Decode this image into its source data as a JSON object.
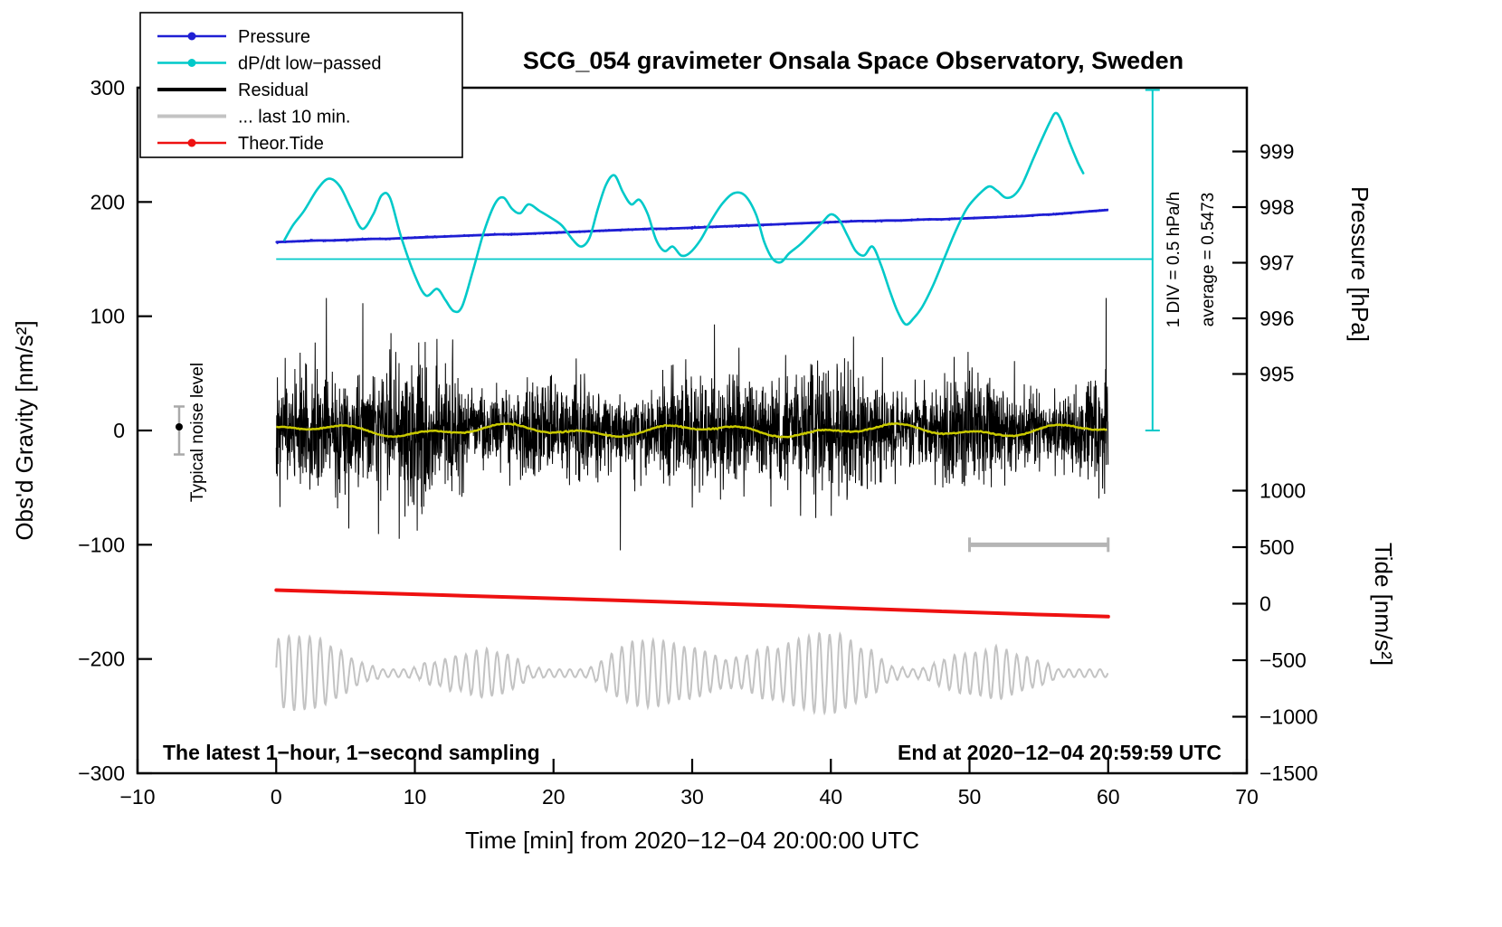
{
  "title": "SCG_054 gravimeter Onsala Space Observatory, Sweden",
  "footer": {
    "left": "The latest 1−hour, 1−second sampling",
    "right": "End at 2020−12−04 20:59:59 UTC"
  },
  "annotations": {
    "div_label": "1 DIV = 0.5 hPa/h",
    "average_label": "average = 0.5473",
    "noise_label": "Typical noise level"
  },
  "colors": {
    "pressure": "#1f1fd4",
    "dpdt": "#00c9c9",
    "residual": "#000000",
    "residual_lowpass": "#c9c900",
    "last10": "#c3c3c3",
    "tide": "#ee1111",
    "frame": "#000000",
    "marker_bar": "#a9a9a9",
    "scale_bar": "#b5b5b5"
  },
  "axes": {
    "x": {
      "label": "Time [min] from 2020−12−04 20:00:00 UTC",
      "min": -10,
      "max": 70,
      "ticks": [
        -10,
        0,
        10,
        20,
        30,
        40,
        50,
        60,
        70
      ],
      "tick_labels": [
        "−10",
        "0",
        "10",
        "20",
        "30",
        "40",
        "50",
        "60",
        "70"
      ]
    },
    "gravity": {
      "label": "Obs'd Gravity [nm/s²]",
      "min": -300,
      "max": 300,
      "ticks": [
        -300,
        -200,
        -100,
        0,
        100,
        200,
        300
      ],
      "tick_labels": [
        "−300",
        "−200",
        "−100",
        "0",
        "100",
        "200",
        "300"
      ]
    },
    "pressure": {
      "label": "Pressure [hPa]",
      "ticks": [
        995,
        996,
        997,
        998,
        999
      ],
      "tick_labels": [
        "995",
        "996",
        "997",
        "998",
        "999"
      ]
    },
    "tide": {
      "label": "Tide [nm/s²]",
      "ticks": [
        1000,
        500,
        0,
        -500,
        -1000,
        -1500
      ],
      "tick_labels": [
        "1000",
        "500",
        "0",
        "−500",
        "−1000",
        "−1500"
      ]
    }
  },
  "legend": {
    "items": [
      {
        "label": "Pressure",
        "color_key": "pressure",
        "marker": "dot",
        "thick": false
      },
      {
        "label": "dP/dt low−passed",
        "color_key": "dpdt",
        "marker": "dot",
        "thick": false
      },
      {
        "label": "Residual",
        "color_key": "residual",
        "marker": "none",
        "thick": true
      },
      {
        "label": "... last 10 min.",
        "color_key": "last10",
        "marker": "none",
        "thick": true
      },
      {
        "label": "Theor.Tide",
        "color_key": "tide",
        "marker": "dot",
        "thick": false
      }
    ]
  },
  "chart_data": {
    "type": "line",
    "title": "SCG_054 gravimeter Onsala Space Observatory, Sweden",
    "x_label": "Time [min] from 2020-12-04 20:00:00 UTC",
    "x_range": [
      -10,
      70
    ],
    "y_left_label": "Obs'd Gravity [nm/s²]",
    "y_left_range": [
      -300,
      300
    ],
    "y_right_pressure_label": "Pressure [hPa]",
    "y_right_pressure_ticks": [
      995,
      999
    ],
    "y_right_tide_label": "Tide [nm/s²]",
    "y_right_tide_range": [
      -1500,
      1000
    ],
    "reference_lines": {
      "dpdt_average": 0.5473,
      "average_line_gravity": 150,
      "div_value_hpa_per_h": 0.5
    },
    "extras": {
      "average_line": {
        "axis": "dpdt",
        "value": 0.5473,
        "x1": 0,
        "x2": 63.2
      },
      "div_ruler": {
        "x": 63.2,
        "gravity_from": 0,
        "gravity_to": 298
      },
      "scale_bar": {
        "x1": 50,
        "x2": 60,
        "gravity": -100
      },
      "noise_marker": {
        "x": -7,
        "gravity": 0,
        "error": 21
      }
    },
    "series": [
      {
        "name": "Pressure",
        "axis": "pressure",
        "render": "sampled_line",
        "color_key": "pressure",
        "width": 2.8,
        "x_start": 0,
        "x_step": 1,
        "y": [
          997.37,
          997.38,
          997.39,
          997.4,
          997.4,
          997.41,
          997.42,
          997.43,
          997.43,
          997.44,
          997.45,
          997.46,
          997.47,
          997.48,
          997.49,
          997.5,
          997.51,
          997.51,
          997.52,
          997.53,
          997.54,
          997.55,
          997.56,
          997.57,
          997.58,
          997.59,
          997.6,
          997.61,
          997.61,
          997.62,
          997.63,
          997.64,
          997.65,
          997.66,
          997.67,
          997.68,
          997.69,
          997.7,
          997.71,
          997.72,
          997.73,
          997.74,
          997.75,
          997.75,
          997.76,
          997.76,
          997.77,
          997.78,
          997.78,
          997.79,
          997.8,
          997.81,
          997.82,
          997.83,
          997.84,
          997.86,
          997.87,
          997.89,
          997.91,
          997.93,
          997.95
        ],
        "dot_seed": 3,
        "dot_count": 700,
        "dot_sigma_hpa": 0.007
      },
      {
        "name": "dP/dt low−passed",
        "axis": "dpdt",
        "render": "smooth_points",
        "color_key": "dpdt",
        "width": 2.6,
        "points": [
          [
            0.6,
            0.72
          ],
          [
            1.2,
            0.85
          ],
          [
            2.0,
            0.98
          ],
          [
            3.0,
            1.18
          ],
          [
            3.8,
            1.27
          ],
          [
            4.6,
            1.2
          ],
          [
            5.4,
            1.0
          ],
          [
            6.2,
            0.82
          ],
          [
            7.0,
            0.95
          ],
          [
            7.6,
            1.12
          ],
          [
            8.2,
            1.1
          ],
          [
            9.0,
            0.75
          ],
          [
            10.0,
            0.4
          ],
          [
            10.8,
            0.22
          ],
          [
            11.6,
            0.28
          ],
          [
            12.2,
            0.18
          ],
          [
            12.8,
            0.08
          ],
          [
            13.4,
            0.12
          ],
          [
            14.2,
            0.45
          ],
          [
            15.0,
            0.8
          ],
          [
            15.8,
            1.05
          ],
          [
            16.4,
            1.1
          ],
          [
            17.0,
            1.0
          ],
          [
            17.6,
            0.96
          ],
          [
            18.2,
            1.04
          ],
          [
            19.0,
            0.98
          ],
          [
            19.8,
            0.92
          ],
          [
            20.6,
            0.85
          ],
          [
            21.4,
            0.72
          ],
          [
            22.0,
            0.66
          ],
          [
            22.6,
            0.74
          ],
          [
            23.2,
            1.0
          ],
          [
            23.8,
            1.22
          ],
          [
            24.4,
            1.3
          ],
          [
            25.0,
            1.15
          ],
          [
            25.6,
            1.04
          ],
          [
            26.2,
            1.08
          ],
          [
            26.8,
            0.95
          ],
          [
            27.4,
            0.72
          ],
          [
            28.0,
            0.62
          ],
          [
            28.6,
            0.66
          ],
          [
            29.2,
            0.58
          ],
          [
            29.8,
            0.6
          ],
          [
            30.6,
            0.72
          ],
          [
            31.4,
            0.9
          ],
          [
            32.2,
            1.05
          ],
          [
            33.0,
            1.14
          ],
          [
            33.8,
            1.12
          ],
          [
            34.6,
            0.95
          ],
          [
            35.2,
            0.7
          ],
          [
            35.8,
            0.55
          ],
          [
            36.4,
            0.52
          ],
          [
            37.0,
            0.6
          ],
          [
            37.8,
            0.68
          ],
          [
            38.6,
            0.78
          ],
          [
            39.4,
            0.88
          ],
          [
            40.0,
            0.95
          ],
          [
            40.6,
            0.9
          ],
          [
            41.2,
            0.76
          ],
          [
            41.8,
            0.62
          ],
          [
            42.4,
            0.58
          ],
          [
            43.0,
            0.66
          ],
          [
            43.6,
            0.5
          ],
          [
            44.2,
            0.28
          ],
          [
            44.8,
            0.08
          ],
          [
            45.4,
            -0.04
          ],
          [
            46.0,
            0.02
          ],
          [
            46.6,
            0.12
          ],
          [
            47.4,
            0.32
          ],
          [
            48.2,
            0.56
          ],
          [
            49.0,
            0.8
          ],
          [
            49.8,
            1.0
          ],
          [
            50.6,
            1.12
          ],
          [
            51.4,
            1.2
          ],
          [
            52.0,
            1.16
          ],
          [
            52.6,
            1.1
          ],
          [
            53.2,
            1.12
          ],
          [
            53.8,
            1.22
          ],
          [
            54.6,
            1.45
          ],
          [
            55.2,
            1.62
          ],
          [
            55.8,
            1.78
          ],
          [
            56.2,
            1.86
          ],
          [
            56.6,
            1.8
          ],
          [
            57.2,
            1.6
          ],
          [
            57.8,
            1.42
          ],
          [
            58.2,
            1.32
          ]
        ]
      },
      {
        "name": "Residual",
        "axis": "gravity",
        "render": "noise",
        "color_key": "residual",
        "width": 1,
        "x_start": 0,
        "x_end": 60,
        "step": 0.018,
        "sigma_base": 22,
        "sigma_mod1": 5,
        "sigma_mod2": 4,
        "spike_prob": 0.01,
        "spike_max_scale": 3.2,
        "clip": 116,
        "seed": 20
      },
      {
        "name": "Residual low−passed",
        "axis": "gravity",
        "render": "sine_mix",
        "color_key": "residual_lowpass",
        "width": 2.5,
        "x_start": 0,
        "x_end": 60,
        "step": 0.1,
        "components": [
          [
            3.5,
            2.2,
            0.3
          ],
          [
            2.5,
            0.9,
            2.0
          ]
        ],
        "noise": 0.8,
        "seed": 5
      },
      {
        "name": "... last 10 min.",
        "axis": "tide",
        "render": "microseism",
        "color_key": "last10",
        "width": 2,
        "x_start": 0,
        "x_end": 60,
        "step": 0.02,
        "mean": -615,
        "period": 0.75,
        "amp_base": 170,
        "amp_mod1": [
          110,
          2.0,
          0.6
        ],
        "amp_mod2": [
          80,
          6.1,
          2.2
        ],
        "walk": 60,
        "seed": 11
      },
      {
        "name": "Theor.Tide",
        "axis": "tide",
        "render": "smooth_points",
        "color_key": "tide",
        "width": 4,
        "points": [
          [
            0,
            120
          ],
          [
            6,
            98
          ],
          [
            12,
            76
          ],
          [
            18,
            54
          ],
          [
            24,
            32
          ],
          [
            30,
            8
          ],
          [
            36,
            -16
          ],
          [
            42,
            -42
          ],
          [
            48,
            -68
          ],
          [
            54,
            -92
          ],
          [
            60,
            -114
          ]
        ]
      }
    ]
  }
}
